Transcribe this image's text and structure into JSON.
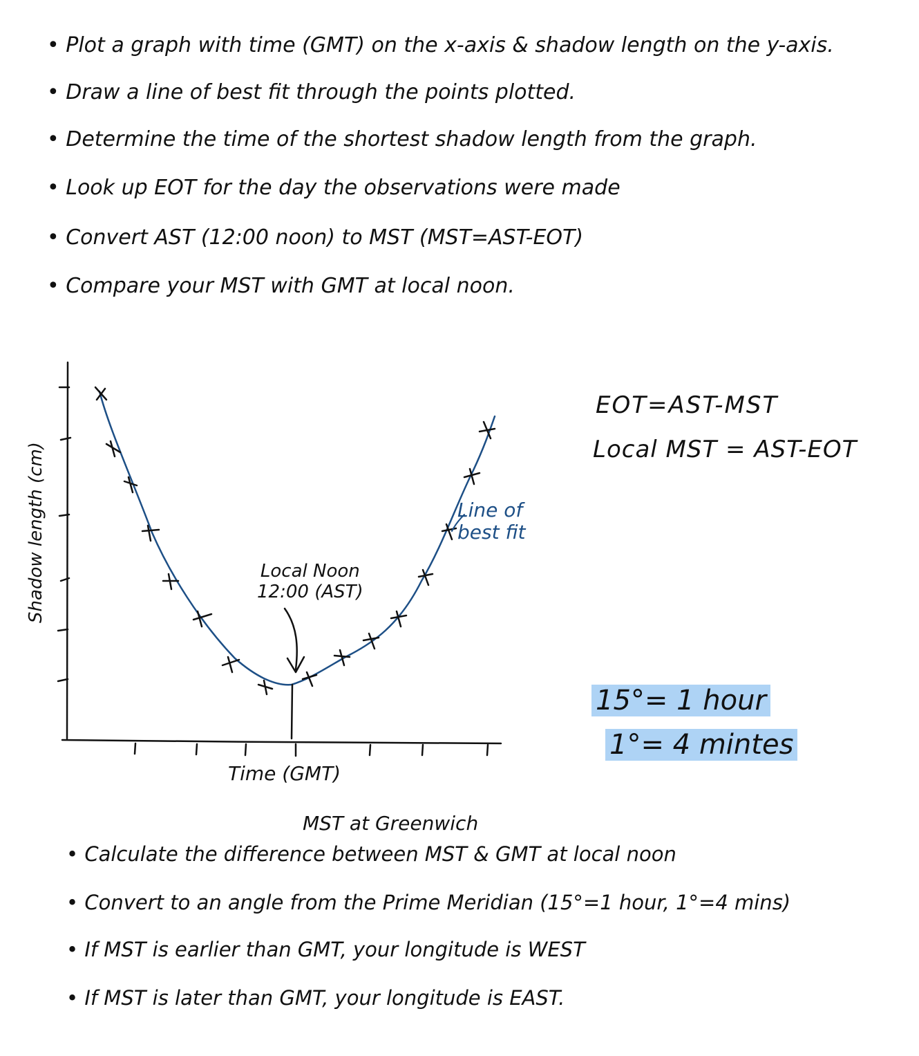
{
  "instructions_top": [
    "Plot a graph with time (GMT) on the x-axis & shadow length on the y-axis.",
    "Draw a line of best fit through the points plotted.",
    "Determine the time of the shortest shadow length from the graph.",
    "Look up EOT for the day the observations were made",
    "Convert AST (12:00 noon) to MST (MST=AST-EOT)",
    "Compare your MST with GMT at local noon."
  ],
  "instructions_bottom": [
    "Calculate the difference between MST & GMT at local noon",
    "Convert to an angle from the Prime Meridian (15°=1 hour, 1°=4 mins)",
    "If MST is earlier than GMT, your longitude is WEST",
    "If MST is later than GMT, your longitude is EAST."
  ],
  "equations": {
    "eot": "EOT=AST-MST",
    "local_mst": "Local MST = AST-EOT"
  },
  "conversions": {
    "line1": "15°= 1 hour",
    "line2": "1°= 4 mintes"
  },
  "graph": {
    "xlabel": "Time (GMT)",
    "ylabel": "Shadow length (cm)",
    "annotation_local_noon_line1": "Local Noon",
    "annotation_local_noon_line2": "12:00 (AST)",
    "annotation_best_fit_line1": "Line of",
    "annotation_best_fit_line2": "best fit",
    "annotation_mst_greenwich": "MST at Greenwich"
  },
  "colors": {
    "ink": "#111111",
    "best_fit_line": "#1d4f86",
    "highlight": "#aed3f5"
  }
}
